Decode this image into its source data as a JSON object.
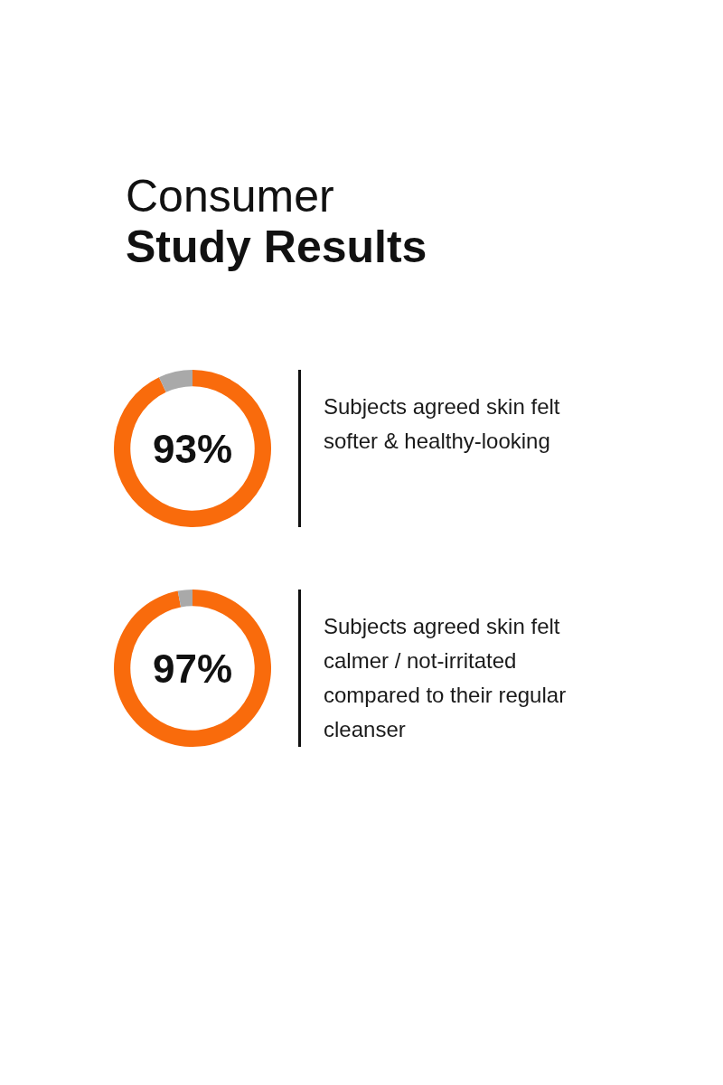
{
  "chart_data": [
    {
      "type": "donut",
      "title": "Consumer Study Results",
      "categories": [
        null,
        null
      ],
      "values": [
        93,
        7
      ],
      "colors": [
        "#f96b0c",
        "#a9a9a9"
      ],
      "value_labels": [
        "93%",
        null
      ],
      "annotations": [
        "Subjects agreed skin felt softer & healthy-looking"
      ]
    },
    {
      "type": "donut",
      "categories": [
        null,
        null
      ],
      "values": [
        97,
        3
      ],
      "colors": [
        "#f96b0c",
        "#a9a9a9"
      ],
      "value_labels": [
        "97%",
        null
      ],
      "annotations": [
        "Subjects agreed skin felt calmer / not-irritated compared to their regular cleanser"
      ]
    }
  ]
}
